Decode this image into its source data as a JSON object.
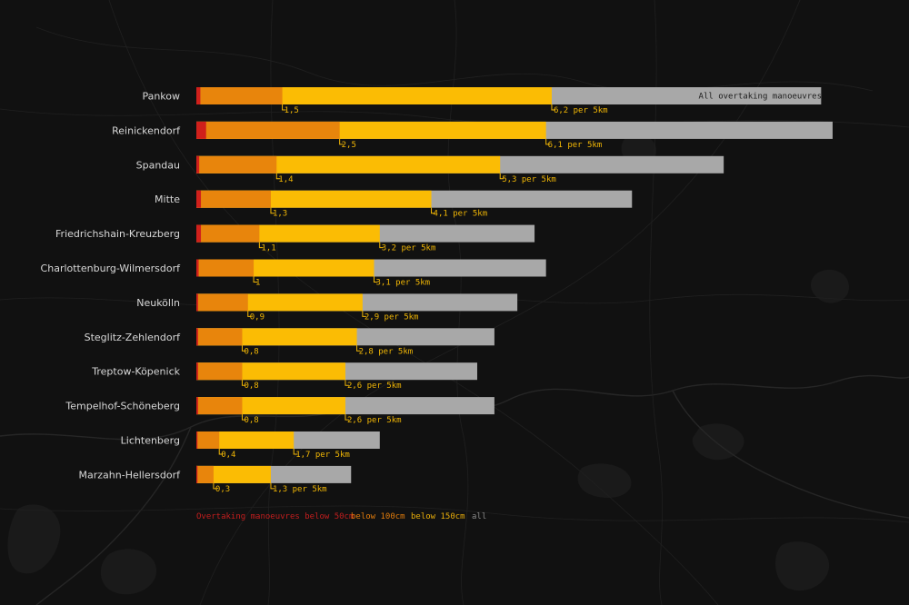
{
  "colors": {
    "below_50": "#d0201b",
    "below_100": "#e8850c",
    "below_150": "#fbbc04",
    "all": "#a8a8a8",
    "annotation": "#f2b705",
    "legend_red": "#c41e1e",
    "legend_orange": "#e07b0c",
    "legend_yellow": "#e8ad0a",
    "legend_gray": "#8a8a8a"
  },
  "chart_data": {
    "type": "bar",
    "orientation": "horizontal",
    "stacked": true,
    "categories": [
      "Pankow",
      "Reinickendorf",
      "Spandau",
      "Mitte",
      "Friedrichshain-Kreuzberg",
      "Charlottenburg-Wilmersdorf",
      "Neukölln",
      "Steglitz-Zehlendorf",
      "Treptow-Köpenick",
      "Tempelhof-Schöneberg",
      "Lichtenberg",
      "Marzahn-Hellersdorf"
    ],
    "series": [
      {
        "name": "Overtaking manoeuvres below 50cm",
        "color_key": "below_50",
        "values": [
          0.07,
          0.17,
          0.05,
          0.08,
          0.08,
          0.04,
          0.03,
          0.03,
          0.03,
          0.03,
          0.02,
          0.02
        ]
      },
      {
        "name": "below 100cm",
        "color_key": "below_100",
        "values": [
          1.5,
          2.5,
          1.4,
          1.3,
          1.1,
          1.0,
          0.9,
          0.8,
          0.8,
          0.8,
          0.4,
          0.3
        ]
      },
      {
        "name": "below 150cm",
        "color_key": "below_150",
        "values": [
          6.2,
          6.1,
          5.3,
          4.1,
          3.2,
          3.1,
          2.9,
          2.8,
          2.6,
          2.6,
          1.7,
          1.3
        ]
      },
      {
        "name": "all",
        "color_key": "all",
        "values": [
          10.9,
          11.1,
          9.2,
          7.6,
          5.9,
          6.1,
          5.6,
          5.2,
          4.9,
          5.2,
          3.2,
          2.7
        ]
      }
    ],
    "annotations": {
      "below_100": [
        "1,5",
        "2,5",
        "1,4",
        "1,3",
        "1,1",
        "1",
        "0,9",
        "0,8",
        "0,8",
        "0,8",
        "0,4",
        "0,3"
      ],
      "below_150": [
        "6,2 per 5km",
        "6,1 per 5km",
        "5,3 per 5km",
        "4,1 per 5km",
        "3,2 per 5km",
        "3,1 per 5km",
        "2,9 per 5km",
        "2,8 per 5km",
        "2,6 per 5km",
        "2,6 per 5km",
        "1,7 per 5km",
        "1,3 per 5km"
      ]
    },
    "inline_label": "All overtaking manoeuvres",
    "legend": [
      {
        "label": "Overtaking manoeuvres below 50cm",
        "color_key": "legend_red"
      },
      {
        "label": "below 100cm",
        "color_key": "legend_orange"
      },
      {
        "label": "below 150cm",
        "color_key": "legend_yellow"
      },
      {
        "label": "all",
        "color_key": "legend_gray"
      }
    ],
    "legend_position": "bottom-left",
    "unit": "per 5km",
    "xlim": [
      0,
      11.1
    ]
  }
}
